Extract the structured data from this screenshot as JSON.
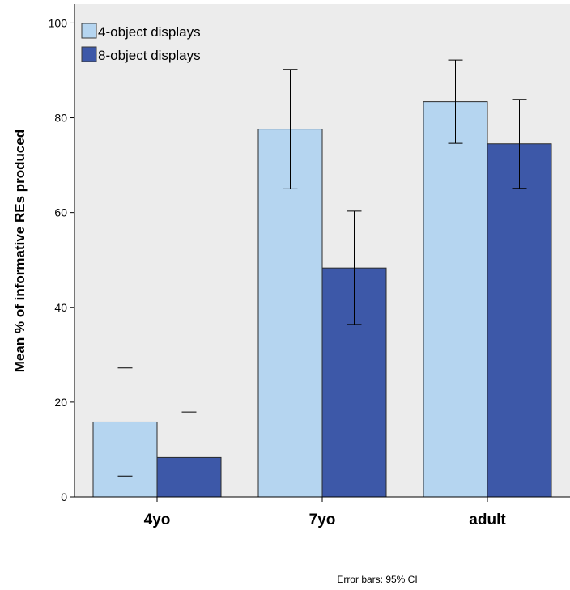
{
  "chart_data": {
    "type": "bar",
    "ylabel": "Mean % of informative REs produced",
    "xlabel": "",
    "categories": [
      "4yo",
      "7yo",
      "adult"
    ],
    "ylim": [
      0,
      104
    ],
    "yticks": [
      "0",
      "20",
      "40",
      "60",
      "80",
      "100"
    ],
    "series": [
      {
        "name": "4-object displays",
        "color": "#b5d5f0",
        "values": [
          15.8,
          77.6,
          83.4
        ],
        "ci_low": [
          4.4,
          65.0,
          74.6
        ],
        "ci_high": [
          27.2,
          90.2,
          92.2
        ]
      },
      {
        "name": "8-object displays",
        "color": "#3d58a8",
        "values": [
          8.3,
          48.3,
          74.5
        ],
        "ci_low": [
          0,
          36.4,
          65.1
        ],
        "ci_high": [
          17.9,
          60.3,
          83.9
        ]
      }
    ],
    "legend_position": "top-left",
    "plot_background": "#ececec",
    "grid": false,
    "error_bars": true
  },
  "footnote": "Error bars: 95% CI"
}
